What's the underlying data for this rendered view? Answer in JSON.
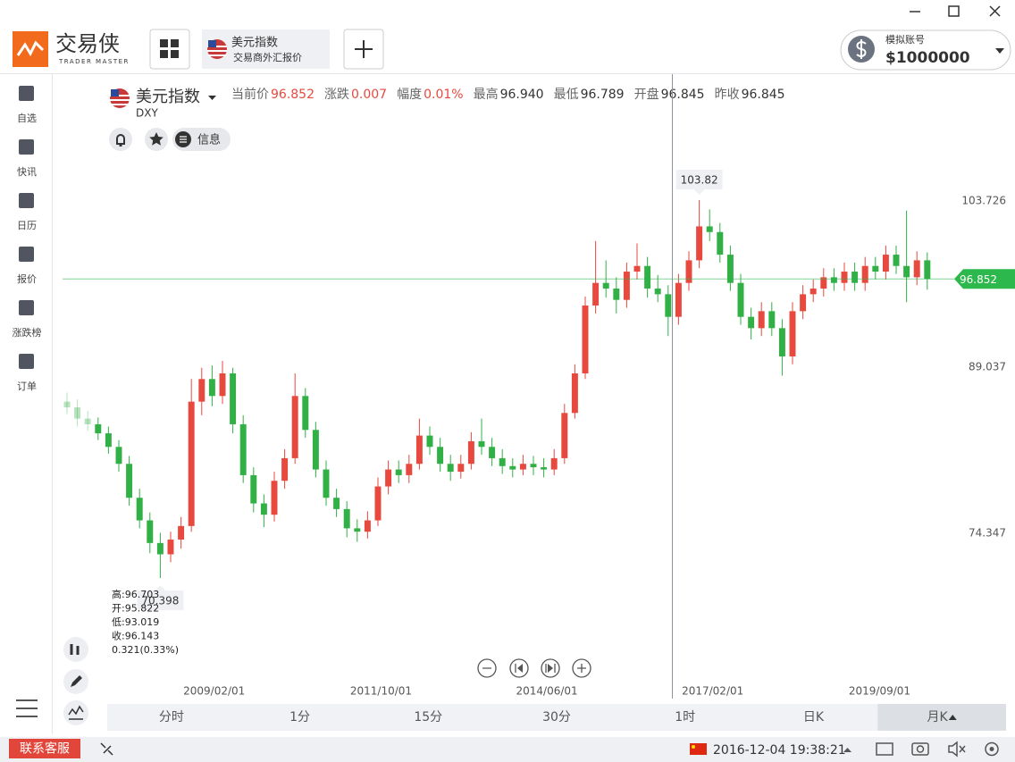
{
  "header": {
    "logo": "交易侠",
    "logo_sub": "TRADER MASTER",
    "tab_title": "美元指数",
    "tab_sub": "交易商外汇报价",
    "account_label": "模拟账号",
    "account_value": "$1000000"
  },
  "sidebar": [
    "自选",
    "快讯",
    "日历",
    "报价",
    "涨跌榜",
    "订单"
  ],
  "quote": {
    "name": "美元指数",
    "code": "DXY",
    "stats": [
      {
        "label": "当前价",
        "value": "96.852",
        "color": "#e8493f"
      },
      {
        "label": "涨跌",
        "value": "0.007",
        "color": "#e8493f"
      },
      {
        "label": "幅度",
        "value": "0.01%",
        "color": "#e8493f"
      },
      {
        "label": "最高",
        "value": "96.940",
        "color": "#333333"
      },
      {
        "label": "最低",
        "value": "96.789",
        "color": "#333333"
      },
      {
        "label": "开盘",
        "value": "96.845",
        "color": "#333333"
      },
      {
        "label": "昨收",
        "value": "96.845",
        "color": "#333333"
      }
    ],
    "info_button": "信息"
  },
  "chart_data": {
    "type": "candlestick",
    "up_color": "#e8493f",
    "down_color": "#31b046",
    "ylim": [
      59.9,
      107.3
    ],
    "yticks": [
      74.347,
      89.037,
      103.726
    ],
    "xlim": [
      -0.43,
      83.62
    ],
    "xticks": [
      {
        "value": 14.2,
        "label": "2009/02/01"
      },
      {
        "value": 30.3,
        "label": "2011/10/01"
      },
      {
        "value": 46.3,
        "label": "2014/06/01"
      },
      {
        "value": 62.3,
        "label": "2017/02/01"
      },
      {
        "value": 78.4,
        "label": "2019/09/01"
      }
    ],
    "last": 96.852,
    "last_color": "#2db84d",
    "tooltip": [
      "高:96.703",
      "开:95.822",
      "低:93.019",
      "收:96.143",
      "0.321(0.33%)"
    ],
    "candles": [
      [
        86.0,
        86.8,
        84.9,
        85.5
      ],
      [
        85.5,
        86.2,
        83.8,
        84.5
      ],
      [
        84.5,
        85.2,
        83.4,
        84.0
      ],
      [
        84.0,
        84.6,
        82.6,
        83.2
      ],
      [
        83.2,
        83.8,
        81.4,
        82.0
      ],
      [
        82.0,
        82.6,
        79.8,
        80.5
      ],
      [
        80.5,
        81.2,
        76.8,
        77.5
      ],
      [
        77.5,
        78.3,
        74.8,
        75.5
      ],
      [
        75.5,
        76.2,
        72.6,
        73.5
      ],
      [
        73.5,
        74.4,
        70.398,
        72.5
      ],
      [
        72.5,
        74.5,
        71.8,
        73.8
      ],
      [
        73.8,
        75.8,
        73.0,
        75.0
      ],
      [
        75.0,
        88.0,
        74.5,
        86.0
      ],
      [
        86.0,
        89.0,
        84.8,
        88.0
      ],
      [
        88.0,
        89.2,
        85.6,
        86.5
      ],
      [
        86.5,
        89.6,
        85.8,
        88.5
      ],
      [
        88.5,
        89.0,
        83.2,
        84.0
      ],
      [
        84.0,
        84.8,
        78.8,
        79.5
      ],
      [
        79.5,
        80.2,
        76.2,
        77.0
      ],
      [
        77.0,
        77.8,
        74.9,
        76.0
      ],
      [
        76.0,
        79.8,
        75.4,
        79.0
      ],
      [
        79.0,
        81.8,
        78.3,
        81.0
      ],
      [
        81.0,
        88.5,
        80.5,
        86.5
      ],
      [
        86.5,
        87.2,
        82.8,
        83.5
      ],
      [
        83.5,
        84.2,
        79.3,
        80.0
      ],
      [
        80.0,
        80.8,
        76.8,
        77.5
      ],
      [
        77.5,
        78.3,
        75.8,
        76.5
      ],
      [
        76.5,
        77.2,
        74.0,
        74.8
      ],
      [
        74.8,
        75.6,
        73.6,
        74.5
      ],
      [
        74.5,
        76.3,
        73.9,
        75.5
      ],
      [
        75.5,
        79.3,
        75.0,
        78.5
      ],
      [
        78.5,
        80.8,
        77.8,
        80.0
      ],
      [
        80.0,
        80.8,
        78.8,
        79.5
      ],
      [
        79.5,
        81.3,
        78.8,
        80.5
      ],
      [
        80.5,
        84.5,
        80.0,
        83.0
      ],
      [
        83.0,
        83.8,
        81.3,
        82.0
      ],
      [
        82.0,
        82.8,
        79.8,
        80.5
      ],
      [
        80.5,
        81.3,
        79.0,
        79.8
      ],
      [
        79.8,
        81.3,
        79.2,
        80.5
      ],
      [
        80.5,
        83.3,
        80.0,
        82.5
      ],
      [
        82.5,
        84.5,
        81.3,
        82.0
      ],
      [
        82.0,
        82.8,
        80.3,
        81.0
      ],
      [
        81.0,
        81.8,
        79.6,
        80.3
      ],
      [
        80.3,
        81.0,
        79.3,
        80.0
      ],
      [
        80.0,
        81.3,
        79.5,
        80.5
      ],
      [
        80.5,
        81.2,
        79.5,
        80.2
      ],
      [
        80.2,
        81.0,
        79.3,
        80.0
      ],
      [
        80.0,
        81.8,
        79.5,
        81.0
      ],
      [
        81.0,
        85.8,
        80.5,
        85.0
      ],
      [
        85.0,
        89.3,
        84.5,
        88.5
      ],
      [
        88.5,
        95.3,
        88.0,
        94.5
      ],
      [
        94.5,
        100.2,
        93.8,
        96.5
      ],
      [
        96.5,
        98.5,
        95.2,
        96.0
      ],
      [
        96.0,
        97.0,
        93.8,
        95.0
      ],
      [
        95.0,
        98.3,
        94.3,
        97.5
      ],
      [
        97.5,
        100.0,
        96.8,
        98.0
      ],
      [
        98.0,
        98.8,
        95.2,
        96.0
      ],
      [
        96.0,
        97.2,
        94.8,
        95.5
      ],
      [
        95.5,
        96.3,
        91.8,
        93.5
      ],
      [
        93.5,
        97.3,
        92.8,
        96.5
      ],
      [
        96.5,
        99.3,
        95.8,
        98.5
      ],
      [
        98.5,
        103.82,
        97.8,
        101.5
      ],
      [
        101.5,
        103.0,
        100.2,
        101.0
      ],
      [
        101.0,
        101.8,
        98.3,
        99.0
      ],
      [
        99.0,
        99.8,
        95.8,
        96.5
      ],
      [
        96.5,
        97.3,
        92.8,
        93.5
      ],
      [
        93.5,
        94.3,
        91.5,
        92.5
      ],
      [
        92.5,
        94.8,
        91.8,
        94.0
      ],
      [
        94.0,
        94.8,
        91.8,
        92.5
      ],
      [
        92.5,
        93.3,
        88.3,
        90.0
      ],
      [
        90.0,
        94.8,
        89.3,
        94.0
      ],
      [
        94.0,
        96.3,
        93.3,
        95.5
      ],
      [
        95.5,
        96.8,
        94.8,
        96.0
      ],
      [
        96.0,
        97.8,
        95.3,
        97.0
      ],
      [
        97.0,
        97.8,
        95.8,
        96.5
      ],
      [
        96.5,
        98.3,
        95.8,
        97.5
      ],
      [
        97.5,
        98.3,
        95.8,
        96.5
      ],
      [
        96.5,
        98.8,
        95.8,
        98.0
      ],
      [
        98.0,
        98.8,
        96.8,
        97.5
      ],
      [
        97.5,
        99.8,
        96.8,
        99.0
      ],
      [
        99.0,
        99.8,
        97.3,
        98.0
      ],
      [
        98.0,
        102.9,
        94.8,
        97.0
      ],
      [
        97.0,
        99.3,
        96.3,
        98.5
      ],
      [
        98.5,
        99.2,
        95.9,
        96.852
      ]
    ],
    "max_index": 61,
    "min_index": 9
  },
  "timeframes": {
    "items": [
      "分时",
      "1分",
      "15分",
      "30分",
      "1时",
      "日K",
      "月K"
    ],
    "active": 6
  },
  "footer": {
    "service": "联系客服",
    "datetime": "2016-12-04 19:38:21"
  }
}
